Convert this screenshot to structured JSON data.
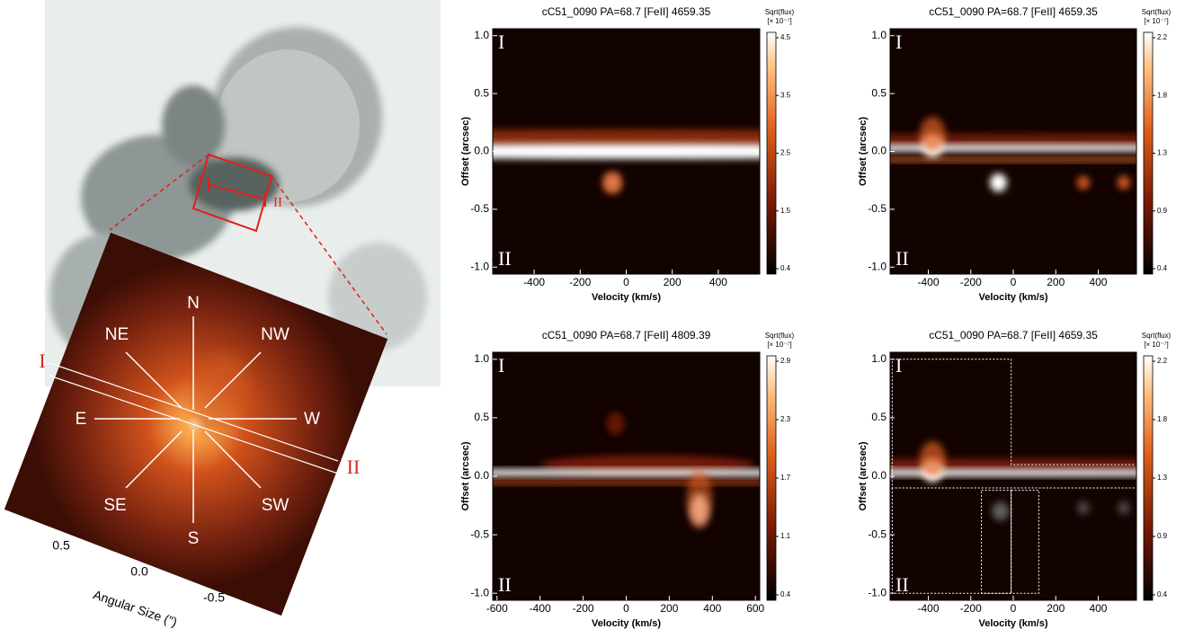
{
  "overview": {
    "compass": [
      "N",
      "NE",
      "NW",
      "E",
      "W",
      "SE",
      "S",
      "SW"
    ],
    "slit_labels": [
      "I",
      "II"
    ],
    "axis_label": "Angular Size (″)",
    "ticks": [
      {
        "value": 0.5,
        "label": "0.5"
      },
      {
        "value": 0.0,
        "label": "0.0"
      },
      {
        "value": -0.5,
        "label": "-0.5"
      }
    ]
  },
  "panels": [
    {
      "title": "cC51_0090 PA=68.7 [FeII] 4659.35",
      "xlabel": "Velocity (km/s)",
      "ylabel": "Offset (arcsec)",
      "xlim": [
        -580,
        580
      ],
      "ylim": [
        -1.06,
        1.06
      ],
      "xticks": [
        -400,
        -200,
        0,
        200,
        400
      ],
      "yticks": [
        {
          "value": 1.0,
          "label": "1.0"
        },
        {
          "value": 0.5,
          "label": "0.5"
        },
        {
          "value": 0.0,
          "label": "0.0"
        },
        {
          "value": -0.5,
          "label": "-0.5"
        },
        {
          "value": -1.0,
          "label": "-1.0"
        }
      ],
      "colorbar_label": "Sqrt(flux)",
      "colorbar_unit": "[× 10⁻⁷]",
      "colorbar_ticks": [
        4.5,
        3.5,
        2.5,
        1.5,
        0.4
      ],
      "regions": [
        "I",
        "II"
      ]
    },
    {
      "title": "cC51_0090 PA=68.7 [FeII] 4659.35",
      "xlabel": "Velocity (km/s)",
      "ylabel": "Offset (arcsec)",
      "xlim": [
        -580,
        580
      ],
      "ylim": [
        -1.06,
        1.06
      ],
      "xticks": [
        -400,
        -200,
        0,
        200,
        400
      ],
      "yticks": [
        {
          "value": 1.0,
          "label": "1.0"
        },
        {
          "value": 0.5,
          "label": "0.5"
        },
        {
          "value": 0.0,
          "label": "0.0"
        },
        {
          "value": -0.5,
          "label": "-0.5"
        },
        {
          "value": -1.0,
          "label": "-1.0"
        }
      ],
      "colorbar_label": "Sqrt(flux)",
      "colorbar_unit": "[× 10⁻⁷]",
      "colorbar_ticks": [
        2.2,
        1.8,
        1.3,
        0.9,
        0.4
      ],
      "regions": [
        "I",
        "II"
      ]
    },
    {
      "title": "cC51_0090 PA=68.7 [FeII] 4809.39",
      "xlabel": "Velocity (km/s)",
      "ylabel": "Offset (arcsec)",
      "xlim": [
        -620,
        620
      ],
      "ylim": [
        -1.06,
        1.06
      ],
      "xticks": [
        -600,
        -400,
        -200,
        0,
        200,
        400,
        600
      ],
      "yticks": [
        {
          "value": 1.0,
          "label": "1.0"
        },
        {
          "value": 0.5,
          "label": "0.5"
        },
        {
          "value": 0.0,
          "label": "0.0"
        },
        {
          "value": -0.5,
          "label": "-0.5"
        },
        {
          "value": -1.0,
          "label": "-1.0"
        }
      ],
      "colorbar_label": "Sqrt(flux)",
      "colorbar_unit": "[× 10⁻⁷]",
      "colorbar_ticks": [
        2.9,
        2.3,
        1.7,
        1.1,
        0.4
      ],
      "regions": [
        "I",
        "II"
      ]
    },
    {
      "title": "cC51_0090 PA=68.7 [FeII] 4659.35",
      "xlabel": "Velocity (km/s)",
      "ylabel": "Offset (arcsec)",
      "xlim": [
        -580,
        580
      ],
      "ylim": [
        -1.06,
        1.06
      ],
      "xticks": [
        -400,
        -200,
        0,
        200,
        400
      ],
      "yticks": [
        {
          "value": 1.0,
          "label": "1.0"
        },
        {
          "value": 0.5,
          "label": "0.5"
        },
        {
          "value": 0.0,
          "label": "0.0"
        },
        {
          "value": -0.5,
          "label": "-0.5"
        },
        {
          "value": -1.0,
          "label": "-1.0"
        }
      ],
      "colorbar_label": "Sqrt(flux)",
      "colorbar_unit": "[× 10⁻⁷]",
      "colorbar_ticks": [
        2.2,
        1.8,
        1.3,
        0.9,
        0.4
      ],
      "regions": [
        "I",
        "II"
      ]
    }
  ]
}
